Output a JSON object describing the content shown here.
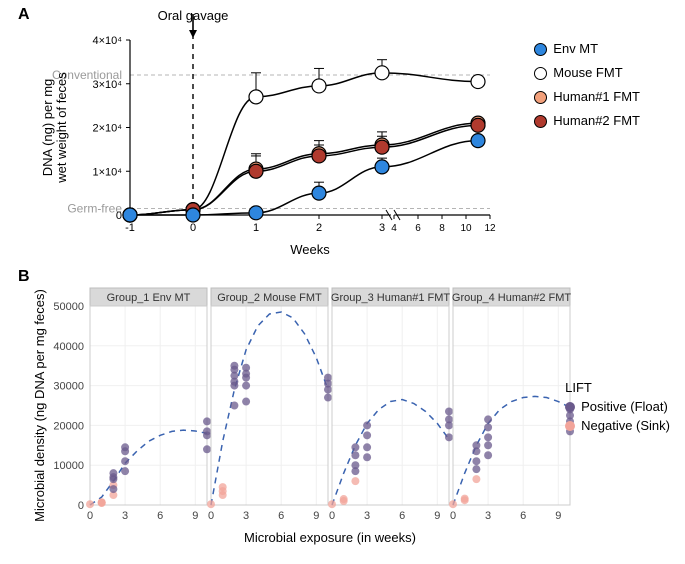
{
  "panelA": {
    "label": "A",
    "title_annotation": "Oral gavage",
    "axes": {
      "xlabel": "Weeks",
      "ylabel_lines": [
        "DNA (ng) per mg",
        "wet weight of feces"
      ],
      "x_ticks_main": [
        -1,
        0,
        1,
        2,
        3
      ],
      "x_break_after": 3,
      "x_ticks_compressed": [
        4,
        6,
        8,
        10,
        12
      ],
      "x_minor_at_break_label": "4  6  8 10 12",
      "xlim": [
        -1,
        12
      ],
      "ylim": [
        0,
        40000
      ],
      "y_ticks": [
        0,
        10000,
        20000,
        30000,
        40000
      ],
      "y_tick_labels": [
        "0",
        "1×10⁴",
        "2×10⁴",
        "3×10⁴",
        "4×10⁴"
      ],
      "y_exp_style": true,
      "ref_lines": {
        "conventional": {
          "y": 32000,
          "label": "Conventional",
          "color": "#b4b4b4",
          "dash": "4,3"
        },
        "germfree": {
          "y": 1500,
          "label": "Germ-free",
          "color": "#b4b4b4",
          "dash": "4,3"
        },
        "zero": {
          "y": 0,
          "color": "#000000",
          "dash": "3,3"
        }
      },
      "gavage_vline": {
        "x": 0,
        "dash": "5,5",
        "arrow": true
      }
    },
    "legend": [
      {
        "name": "Env MT",
        "fill": "#2e86de",
        "stroke": "#000000"
      },
      {
        "name": "Mouse FMT",
        "fill": "#ffffff",
        "stroke": "#000000"
      },
      {
        "name": "Human#1 FMT",
        "fill": "#f2a07b",
        "stroke": "#000000"
      },
      {
        "name": "Human#2 FMT",
        "fill": "#b03a2e",
        "stroke": "#000000"
      }
    ],
    "series": {
      "env_mt": {
        "color": "#000000",
        "marker_fill": "#2e86de",
        "points": [
          {
            "x": -1,
            "y": 0,
            "err": 0
          },
          {
            "x": 0,
            "y": 0,
            "err": 0
          },
          {
            "x": 1,
            "y": 500,
            "err": 800
          },
          {
            "x": 2,
            "y": 5000,
            "err": 2500
          },
          {
            "x": 3,
            "y": 11000,
            "err": 2000
          },
          {
            "x": 11,
            "y": 17000,
            "err": 0
          }
        ]
      },
      "mouse_fmt": {
        "color": "#000000",
        "marker_fill": "#ffffff",
        "points": [
          {
            "x": -1,
            "y": 0,
            "err": 0
          },
          {
            "x": 0,
            "y": 1200,
            "err": 800
          },
          {
            "x": 1,
            "y": 27000,
            "err": 5500
          },
          {
            "x": 2,
            "y": 29500,
            "err": 4000
          },
          {
            "x": 3,
            "y": 32500,
            "err": 3000
          },
          {
            "x": 11,
            "y": 30500,
            "err": 0
          }
        ]
      },
      "human1_fmt": {
        "color": "#000000",
        "marker_fill": "#f2a07b",
        "points": [
          {
            "x": -1,
            "y": 0,
            "err": 0
          },
          {
            "x": 0,
            "y": 1200,
            "err": 700
          },
          {
            "x": 1,
            "y": 10500,
            "err": 3500
          },
          {
            "x": 2,
            "y": 14000,
            "err": 3000
          },
          {
            "x": 3,
            "y": 16000,
            "err": 3000
          },
          {
            "x": 11,
            "y": 21000,
            "err": 0
          }
        ]
      },
      "human2_fmt": {
        "color": "#000000",
        "marker_fill": "#b03a2e",
        "points": [
          {
            "x": -1,
            "y": 0,
            "err": 0
          },
          {
            "x": 0,
            "y": 1200,
            "err": 700
          },
          {
            "x": 1,
            "y": 10000,
            "err": 3500
          },
          {
            "x": 2,
            "y": 13500,
            "err": 2500
          },
          {
            "x": 3,
            "y": 15500,
            "err": 2500
          },
          {
            "x": 11,
            "y": 20500,
            "err": 0
          }
        ]
      }
    },
    "style": {
      "line_color": "#000000",
      "line_width": 1.5,
      "marker_stroke": "#000000",
      "marker_stroke_width": 1.2,
      "marker_radius": 7,
      "errorbar_cap": 5,
      "background_color": "#ffffff",
      "axis_color": "#000000",
      "tick_font_size": 11,
      "label_font_size": 13,
      "annotation_font_size": 13
    }
  },
  "panelB": {
    "label": "B",
    "facets": [
      {
        "title": "Group_1 Env MT",
        "curve": [
          [
            0,
            0
          ],
          [
            1,
            2000
          ],
          [
            2,
            6000
          ],
          [
            3,
            10500
          ],
          [
            4,
            13500
          ],
          [
            5,
            16000
          ],
          [
            6,
            17500
          ],
          [
            7,
            18500
          ],
          [
            8,
            18800
          ],
          [
            9,
            18600
          ],
          [
            10,
            18000
          ]
        ],
        "points": [
          {
            "x": 0,
            "y": 200,
            "lift": "neg"
          },
          {
            "x": 1,
            "y": 500,
            "lift": "neg"
          },
          {
            "x": 1,
            "y": 700,
            "lift": "neg"
          },
          {
            "x": 1,
            "y": 600,
            "lift": "neg"
          },
          {
            "x": 2,
            "y": 2500,
            "lift": "neg"
          },
          {
            "x": 2,
            "y": 5000,
            "lift": "neg"
          },
          {
            "x": 2,
            "y": 4000,
            "lift": "pos"
          },
          {
            "x": 2,
            "y": 6500,
            "lift": "pos"
          },
          {
            "x": 2,
            "y": 7000,
            "lift": "pos"
          },
          {
            "x": 2,
            "y": 8000,
            "lift": "pos"
          },
          {
            "x": 3,
            "y": 8500,
            "lift": "pos"
          },
          {
            "x": 3,
            "y": 11000,
            "lift": "pos"
          },
          {
            "x": 3,
            "y": 13500,
            "lift": "pos"
          },
          {
            "x": 3,
            "y": 14500,
            "lift": "pos"
          },
          {
            "x": 10,
            "y": 14000,
            "lift": "pos"
          },
          {
            "x": 10,
            "y": 17500,
            "lift": "pos"
          },
          {
            "x": 10,
            "y": 18500,
            "lift": "pos"
          },
          {
            "x": 10,
            "y": 21000,
            "lift": "pos"
          }
        ]
      },
      {
        "title": "Group_2 Mouse FMT",
        "curve": [
          [
            0,
            0
          ],
          [
            1,
            16000
          ],
          [
            2,
            29000
          ],
          [
            3,
            39000
          ],
          [
            4,
            45000
          ],
          [
            5,
            48000
          ],
          [
            6,
            48500
          ],
          [
            7,
            47000
          ],
          [
            8,
            43000
          ],
          [
            9,
            37000
          ],
          [
            10,
            29000
          ]
        ],
        "points": [
          {
            "x": 0,
            "y": 200,
            "lift": "neg"
          },
          {
            "x": 1,
            "y": 2500,
            "lift": "neg"
          },
          {
            "x": 1,
            "y": 4500,
            "lift": "neg"
          },
          {
            "x": 1,
            "y": 3500,
            "lift": "neg"
          },
          {
            "x": 2,
            "y": 25000,
            "lift": "pos"
          },
          {
            "x": 2,
            "y": 30000,
            "lift": "pos"
          },
          {
            "x": 2,
            "y": 31000,
            "lift": "pos"
          },
          {
            "x": 2,
            "y": 32500,
            "lift": "pos"
          },
          {
            "x": 2,
            "y": 34000,
            "lift": "pos"
          },
          {
            "x": 2,
            "y": 35000,
            "lift": "pos"
          },
          {
            "x": 3,
            "y": 26000,
            "lift": "pos"
          },
          {
            "x": 3,
            "y": 30000,
            "lift": "pos"
          },
          {
            "x": 3,
            "y": 32000,
            "lift": "pos"
          },
          {
            "x": 3,
            "y": 33000,
            "lift": "pos"
          },
          {
            "x": 3,
            "y": 34500,
            "lift": "pos"
          },
          {
            "x": 10,
            "y": 27000,
            "lift": "pos"
          },
          {
            "x": 10,
            "y": 29000,
            "lift": "pos"
          },
          {
            "x": 10,
            "y": 30500,
            "lift": "pos"
          },
          {
            "x": 10,
            "y": 32000,
            "lift": "pos"
          }
        ]
      },
      {
        "title": "Group_3 Human#1 FMT",
        "curve": [
          [
            0,
            0
          ],
          [
            1,
            8000
          ],
          [
            2,
            15000
          ],
          [
            3,
            20500
          ],
          [
            4,
            24000
          ],
          [
            5,
            26000
          ],
          [
            6,
            26500
          ],
          [
            7,
            25500
          ],
          [
            8,
            23500
          ],
          [
            9,
            20500
          ],
          [
            10,
            16500
          ]
        ],
        "points": [
          {
            "x": 0,
            "y": 200,
            "lift": "neg"
          },
          {
            "x": 1,
            "y": 1000,
            "lift": "neg"
          },
          {
            "x": 1,
            "y": 1500,
            "lift": "neg"
          },
          {
            "x": 2,
            "y": 6000,
            "lift": "neg"
          },
          {
            "x": 2,
            "y": 8500,
            "lift": "pos"
          },
          {
            "x": 2,
            "y": 10000,
            "lift": "pos"
          },
          {
            "x": 2,
            "y": 12500,
            "lift": "pos"
          },
          {
            "x": 2,
            "y": 14500,
            "lift": "pos"
          },
          {
            "x": 3,
            "y": 12000,
            "lift": "pos"
          },
          {
            "x": 3,
            "y": 14500,
            "lift": "pos"
          },
          {
            "x": 3,
            "y": 17500,
            "lift": "pos"
          },
          {
            "x": 3,
            "y": 20000,
            "lift": "pos"
          },
          {
            "x": 10,
            "y": 17000,
            "lift": "pos"
          },
          {
            "x": 10,
            "y": 20000,
            "lift": "pos"
          },
          {
            "x": 10,
            "y": 21500,
            "lift": "pos"
          },
          {
            "x": 10,
            "y": 23500,
            "lift": "pos"
          }
        ]
      },
      {
        "title": "Group_4 Human#2 FMT",
        "curve": [
          [
            0,
            0
          ],
          [
            1,
            8000
          ],
          [
            2,
            15000
          ],
          [
            3,
            20500
          ],
          [
            4,
            24000
          ],
          [
            5,
            26000
          ],
          [
            6,
            27000
          ],
          [
            7,
            27300
          ],
          [
            8,
            27000
          ],
          [
            9,
            26000
          ],
          [
            10,
            24500
          ]
        ],
        "points": [
          {
            "x": 0,
            "y": 200,
            "lift": "neg"
          },
          {
            "x": 1,
            "y": 1200,
            "lift": "neg"
          },
          {
            "x": 1,
            "y": 1600,
            "lift": "neg"
          },
          {
            "x": 2,
            "y": 6500,
            "lift": "neg"
          },
          {
            "x": 2,
            "y": 9000,
            "lift": "pos"
          },
          {
            "x": 2,
            "y": 11000,
            "lift": "pos"
          },
          {
            "x": 2,
            "y": 13500,
            "lift": "pos"
          },
          {
            "x": 2,
            "y": 15000,
            "lift": "pos"
          },
          {
            "x": 3,
            "y": 12500,
            "lift": "pos"
          },
          {
            "x": 3,
            "y": 15000,
            "lift": "pos"
          },
          {
            "x": 3,
            "y": 17000,
            "lift": "pos"
          },
          {
            "x": 3,
            "y": 19500,
            "lift": "pos"
          },
          {
            "x": 3,
            "y": 21500,
            "lift": "pos"
          },
          {
            "x": 10,
            "y": 18500,
            "lift": "pos"
          },
          {
            "x": 10,
            "y": 21000,
            "lift": "pos"
          },
          {
            "x": 10,
            "y": 22500,
            "lift": "pos"
          },
          {
            "x": 10,
            "y": 24000,
            "lift": "pos"
          }
        ]
      }
    ],
    "axes": {
      "xlabel": "Microbial exposure (in weeks)",
      "ylabel": "Microbial density (ng DNA per mg feces)",
      "xlim": [
        0,
        10
      ],
      "ylim": [
        0,
        50000
      ],
      "x_ticks": [
        0,
        3,
        6,
        9
      ],
      "y_ticks": [
        0,
        10000,
        20000,
        30000,
        40000,
        50000
      ]
    },
    "legend": {
      "title": "LIFT",
      "items": [
        {
          "key": "pos",
          "label": "Positive (Float)",
          "color": "#6a5a8c"
        },
        {
          "key": "neg",
          "label": "Negative (Sink)",
          "color": "#f2a49a"
        }
      ]
    },
    "style": {
      "facet_strip_fill": "#d9d9d9",
      "facet_strip_stroke": "#bdbdbd",
      "panel_bg": "#ffffff",
      "panel_border": "#cccccc",
      "gridline_color": "#f0f0f0",
      "curve_color": "#3a63b0",
      "curve_dash": "6,5",
      "curve_width": 1.5,
      "point_radius": 4,
      "point_opacity": 0.75,
      "tick_font_size": 11,
      "label_font_size": 13
    }
  }
}
